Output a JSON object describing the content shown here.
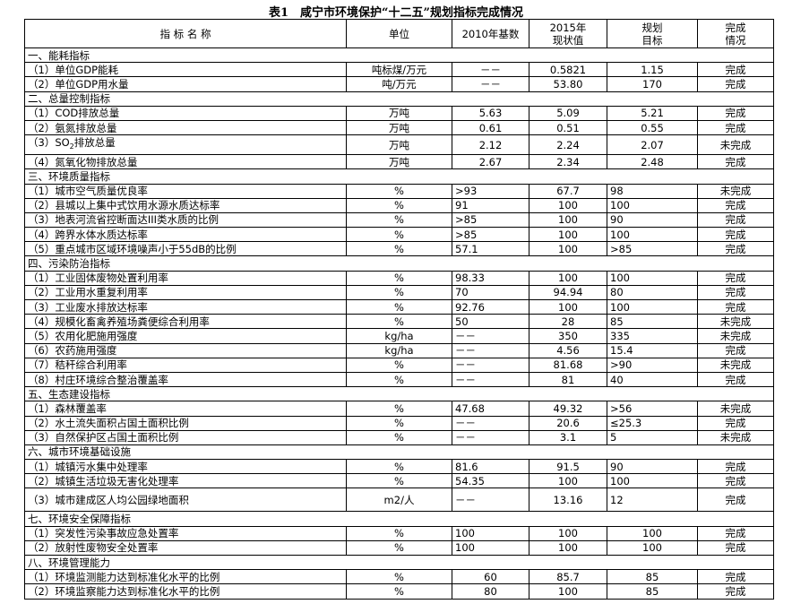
{
  "title": "表1　咸宁市环境保护“十二五”规划指标完成情况",
  "headers": [
    "指 标 名 称",
    "单位",
    "2010年基数",
    "2015年\n现状值",
    "规划\n目标",
    "完成\n情况"
  ],
  "sections": [
    {
      "name": "一、能耗指标",
      "rows": [
        [
          "（1）单位GDP能耗",
          "吨标煤/万元",
          "－－",
          "0.5821",
          "1.15",
          "完成"
        ],
        [
          "（2）单位GDP用水量",
          "吨/万元",
          "－－",
          "53.80",
          "170",
          "完成"
        ]
      ]
    },
    {
      "name": "二、总量控制指标",
      "rows": [
        [
          "（1）COD排放总量",
          "万吨",
          "5.63",
          "5.09",
          "5.21",
          "完成"
        ],
        [
          "（2）氨氮排放总量",
          "万吨",
          "0.61",
          "0.51",
          "0.55",
          "完成"
        ],
        [
          "（3）SO2排放总量",
          "万吨",
          "2.12",
          "2.24",
          "2.07",
          "未完成"
        ],
        [
          "（4）氮氧化物排放总量",
          "万吨",
          "2.67",
          "2.34",
          "2.48",
          "完成"
        ]
      ]
    },
    {
      "name": "三、环境质量指标",
      "rows": [
        [
          "（1）城市空气质量优良率",
          "%",
          ">93",
          "67.7",
          "98",
          "未完成"
        ],
        [
          "（2）县城以上集中式饮用水源水质达标率",
          "%",
          "91",
          "100",
          "100",
          "完成"
        ],
        [
          "（3）地表河流省控断面达III类水质的比例",
          "%",
          ">85",
          "100",
          "90",
          "完成"
        ],
        [
          "（4）跨界水体水质达标率",
          "%",
          ">85",
          "100",
          "100",
          "完成"
        ],
        [
          "（5）重点城市区域环境噪声小于55dB的比例",
          "%",
          "57.1",
          "100",
          ">85",
          "完成"
        ]
      ]
    },
    {
      "name": "四、污染防治指标",
      "rows": [
        [
          "（1）工业固体废物处置利用率",
          "%",
          "98.33",
          "100",
          "100",
          "完成"
        ],
        [
          "（2）工业用水重复利用率",
          "%",
          "70",
          "94.94",
          "80",
          "完成"
        ],
        [
          "（3）工业废水排放达标率",
          "%",
          "92.76",
          "100",
          "100",
          "完成"
        ],
        [
          "（4）规模化畜禽养殖场粪便综合利用率",
          "%",
          "50",
          "28",
          "85",
          "未完成"
        ],
        [
          "（5）农用化肥施用强度",
          "kg/ha",
          "－－",
          "350",
          "335",
          "未完成"
        ],
        [
          "（6）农药施用强度",
          "kg/ha",
          "－－",
          "4.56",
          "15.4",
          "完成"
        ],
        [
          "（7）秸秆综合利用率",
          "%",
          "－－",
          "81.68",
          ">90",
          "未完成"
        ],
        [
          "（8）村庄环境综合整治覆盖率",
          "%",
          "－－",
          "81",
          "40",
          "完成"
        ]
      ]
    },
    {
      "name": "五、生态建设指标",
      "rows": [
        [
          "（1）森林覆盖率",
          "%",
          "47.68",
          "49.32",
          ">56",
          "未完成"
        ],
        [
          "（2）水土流失面积占国土面积比例",
          "%",
          "－－",
          "20.6",
          "≤25.3",
          "完成"
        ],
        [
          "（3）自然保护区占国土面积比例",
          "%",
          "－－",
          "3.1",
          "5",
          "未完成"
        ]
      ]
    },
    {
      "name": "六、城市环境基础设施",
      "rows": [
        [
          "（1）城镇污水集中处理率",
          "%",
          "81.6",
          "91.5",
          "90",
          "完成"
        ],
        [
          "（2）城镇生活垃圾无害化处理率",
          "%",
          "54.35",
          "100",
          "100",
          "完成"
        ],
        [
          "（3）城市建成区人均公园绿地面积",
          "m2/人",
          "－－",
          "13.16",
          "12",
          "完成"
        ]
      ]
    },
    {
      "name": "七、环境安全保障指标",
      "rows": [
        [
          "（1）突发性污染事故应急处置率",
          "%",
          "100",
          "100",
          "100",
          "完成"
        ],
        [
          "（2）放射性废物安全处置率",
          "%",
          "100",
          "100",
          "100",
          "完成"
        ]
      ]
    },
    {
      "name": "八、环境管理能力",
      "rows": [
        [
          "（1）环境监测能力达到标准化水平的比例",
          "%",
          "60",
          "85.7",
          "85",
          "完成"
        ],
        [
          "（2）环境监察能力达到标准化水平的比例",
          "%",
          "80",
          "100",
          "85",
          "完成"
        ]
      ]
    }
  ]
}
